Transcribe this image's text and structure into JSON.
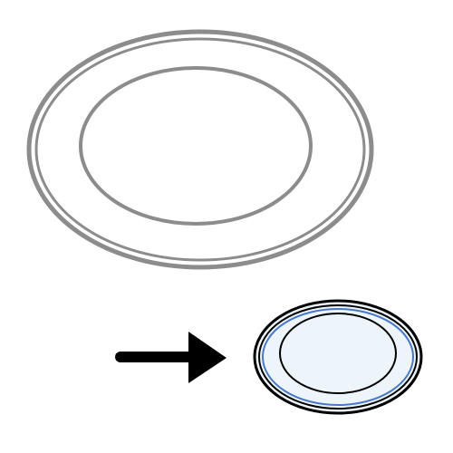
{
  "scene": {
    "large_plate": {
      "style": "outline",
      "rim_color": "#8c8c8c"
    },
    "arrow": {
      "direction": "right",
      "color": "#000000"
    },
    "small_plate": {
      "style": "colored",
      "outer_color": "#000000",
      "accent_color": "#4a78c8",
      "fill_color": "#edf5fa",
      "inner_color": "#000000"
    }
  }
}
